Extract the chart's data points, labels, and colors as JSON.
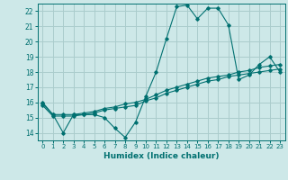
{
  "title": "",
  "xlabel": "Humidex (Indice chaleur)",
  "ylabel": "",
  "bg_color": "#cde8e8",
  "grid_color": "#aacccc",
  "line_color": "#007070",
  "xlim": [
    -0.5,
    23.5
  ],
  "ylim": [
    13.5,
    22.5
  ],
  "xticks": [
    0,
    1,
    2,
    3,
    4,
    5,
    6,
    7,
    8,
    9,
    10,
    11,
    12,
    13,
    14,
    15,
    16,
    17,
    18,
    19,
    20,
    21,
    22,
    23
  ],
  "yticks": [
    14,
    15,
    16,
    17,
    18,
    19,
    20,
    21,
    22
  ],
  "line1_x": [
    0,
    1,
    2,
    3,
    4,
    5,
    6,
    7,
    8,
    9,
    10,
    11,
    12,
    13,
    14,
    15,
    16,
    17,
    18,
    19,
    20,
    21,
    22,
    23
  ],
  "line1_y": [
    16.0,
    15.2,
    14.0,
    15.2,
    15.2,
    15.2,
    15.0,
    14.3,
    13.7,
    14.7,
    16.4,
    18.0,
    20.2,
    22.3,
    22.4,
    21.5,
    22.2,
    22.2,
    21.1,
    17.5,
    17.8,
    18.5,
    19.0,
    18.0
  ],
  "line2_x": [
    0,
    1,
    2,
    3,
    4,
    5,
    6,
    7,
    8,
    9,
    10,
    11,
    12,
    13,
    14,
    15,
    16,
    17,
    18,
    19,
    20,
    21,
    22,
    23
  ],
  "line2_y": [
    15.8,
    15.1,
    15.1,
    15.1,
    15.2,
    15.3,
    15.5,
    15.6,
    15.7,
    15.8,
    16.1,
    16.3,
    16.6,
    16.8,
    17.0,
    17.2,
    17.4,
    17.5,
    17.7,
    17.8,
    17.9,
    18.0,
    18.1,
    18.2
  ],
  "line3_x": [
    0,
    1,
    2,
    3,
    4,
    5,
    6,
    7,
    8,
    9,
    10,
    11,
    12,
    13,
    14,
    15,
    16,
    17,
    18,
    19,
    20,
    21,
    22,
    23
  ],
  "line3_y": [
    15.9,
    15.2,
    15.2,
    15.2,
    15.3,
    15.4,
    15.6,
    15.7,
    15.9,
    16.0,
    16.2,
    16.5,
    16.8,
    17.0,
    17.2,
    17.4,
    17.6,
    17.7,
    17.8,
    18.0,
    18.1,
    18.3,
    18.4,
    18.5
  ]
}
